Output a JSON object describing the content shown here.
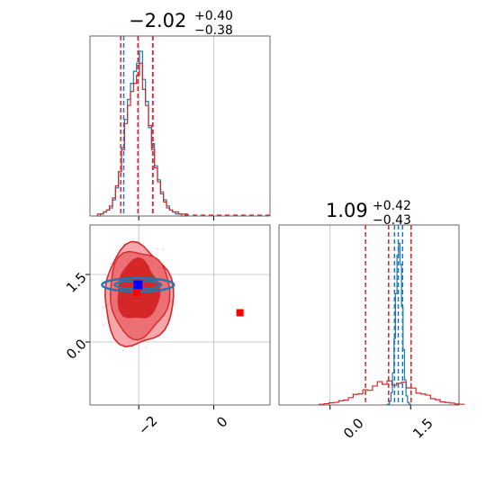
{
  "chart_data": [
    {
      "type": "histogram",
      "panel": "marginal-param-1",
      "title": {
        "main": "−2.02",
        "upper": "+0.40",
        "lower": "−0.38"
      },
      "x_range": [
        -3.3,
        1.5
      ],
      "x_ticks": [
        "−2",
        "0"
      ],
      "x_tick_values": [
        -2,
        0
      ],
      "grid": true,
      "series": [
        {
          "color": "#1f77b4",
          "quantile_lines": [
            -2.4,
            -2.02,
            -1.63
          ]
        },
        {
          "color": "#d62728",
          "quantile_lines": [
            -2.48,
            -2.02,
            -1.62
          ]
        }
      ],
      "bins": [
        -3.1,
        -3.02,
        -2.94,
        -2.86,
        -2.78,
        -2.7,
        -2.62,
        -2.54,
        -2.46,
        -2.38,
        -2.3,
        -2.22,
        -2.14,
        -2.06,
        -1.98,
        -1.9,
        -1.82,
        -1.74,
        -1.66,
        -1.58,
        -1.5,
        -1.42,
        -1.34,
        -1.26,
        -1.18,
        -1.1,
        -1.02,
        -0.94,
        -0.86,
        -0.78
      ],
      "blue_counts": [
        0,
        1,
        2,
        3,
        4,
        8,
        14,
        22,
        34,
        48,
        58,
        66,
        72,
        76,
        82,
        68,
        57,
        44,
        36,
        25,
        18,
        12,
        8,
        5,
        3,
        2,
        1,
        1,
        0,
        0
      ],
      "red_counts": [
        1,
        1,
        2,
        3,
        5,
        9,
        15,
        22,
        33,
        46,
        55,
        62,
        66,
        70,
        76,
        63,
        55,
        45,
        33,
        24,
        17,
        11,
        7,
        4,
        3,
        2,
        2,
        1,
        1,
        1
      ]
    },
    {
      "type": "histogram",
      "panel": "marginal-param-2",
      "title": {
        "main": "1.09",
        "upper": "+0.42",
        "lower": "−0.43"
      },
      "x_range": [
        -0.95,
        2.4
      ],
      "x_ticks": [
        "0.0",
        "1.5"
      ],
      "x_tick_values": [
        0.0,
        1.5
      ],
      "grid": true,
      "series": [
        {
          "color": "#1f77b4",
          "quantile_lines": [
            1.2,
            1.27,
            1.35
          ]
        },
        {
          "color": "#d62728",
          "quantile_lines": [
            0.66,
            1.09,
            1.51
          ]
        }
      ]
    },
    {
      "type": "contour-scatter",
      "panel": "joint-2d",
      "x_range": [
        -3.3,
        1.5
      ],
      "y_range": [
        -1.4,
        2.6
      ],
      "x_ticks": [
        "−2",
        "0"
      ],
      "y_ticks": [
        "1.5",
        "0.0"
      ],
      "x_tick_values": [
        -2,
        0
      ],
      "y_tick_values": [
        1.5,
        0.0
      ],
      "grid": true,
      "markers": [
        {
          "color": "#0000ff",
          "x": -2.02,
          "y": 1.27
        },
        {
          "color": "#ff0000",
          "x": 0.7,
          "y": 0.65
        },
        {
          "color": "#ff0000",
          "x": -2.05,
          "y": 1.1
        }
      ]
    }
  ]
}
